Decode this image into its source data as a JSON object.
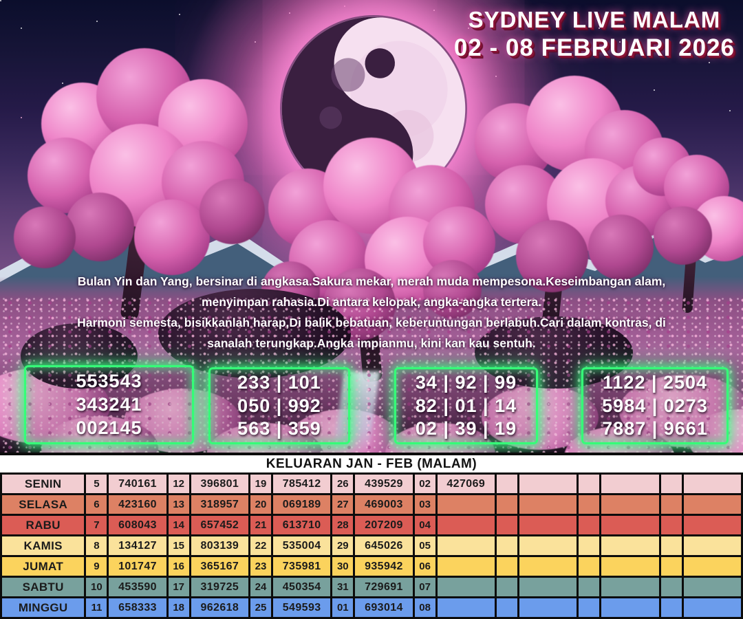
{
  "title": {
    "line1": "SYDNEY LIVE MALAM",
    "line2": "02 - 08 FEBRUARI 2026"
  },
  "poem": {
    "lines": [
      "Bulan Yin dan Yang, bersinar di angkasa.Sakura mekar, merah muda mempesona.Keseimbangan alam,",
      "menyimpan rahasia.Di antara kelopak, angka-angka tertera.",
      "Harmoni semesta, bisikkanlah harap,Di balik bebatuan, keberuntungan berlabuh.Cari dalam kontras, di",
      "sanalah terungkap.Angka impianmu, kini kan kau sentuh."
    ]
  },
  "boxes": [
    {
      "lines": [
        "553543",
        "343241",
        "002145"
      ]
    },
    {
      "lines": [
        "233 | 101",
        "050 | 992",
        "563 | 359"
      ]
    },
    {
      "lines": [
        "34 | 92 | 99",
        "82 | 01 | 14",
        "02 | 39 | 19"
      ]
    },
    {
      "lines": [
        "1122 | 2504",
        "5984 | 0273",
        "7887 | 9661"
      ]
    }
  ],
  "table": {
    "header": "KELUARAN JAN - FEB (MALAM)",
    "rows": [
      {
        "day": "SENIN",
        "color": "#f2cdd1",
        "cells": [
          "5",
          "740161",
          "12",
          "396801",
          "19",
          "785412",
          "26",
          "439529",
          "02",
          "427069",
          "",
          "",
          "",
          "",
          "",
          ""
        ]
      },
      {
        "day": "SELASA",
        "color": "#dd8164",
        "cells": [
          "6",
          "423160",
          "13",
          "318957",
          "20",
          "069189",
          "27",
          "469003",
          "03",
          "",
          "",
          "",
          "",
          "",
          "",
          ""
        ]
      },
      {
        "day": "RABU",
        "color": "#db5c55",
        "cells": [
          "7",
          "608043",
          "14",
          "657452",
          "21",
          "613710",
          "28",
          "207209",
          "04",
          "",
          "",
          "",
          "",
          "",
          "",
          ""
        ]
      },
      {
        "day": "KAMIS",
        "color": "#fae29b",
        "cells": [
          "8",
          "134127",
          "15",
          "803139",
          "22",
          "535004",
          "29",
          "645026",
          "05",
          "",
          "",
          "",
          "",
          "",
          "",
          ""
        ]
      },
      {
        "day": "JUMAT",
        "color": "#fbd35d",
        "cells": [
          "9",
          "101747",
          "16",
          "365167",
          "23",
          "735981",
          "30",
          "935942",
          "06",
          "",
          "",
          "",
          "",
          "",
          "",
          ""
        ]
      },
      {
        "day": "SABTU",
        "color": "#78a19d",
        "cells": [
          "10",
          "453590",
          "17",
          "319725",
          "24",
          "450354",
          "31",
          "729691",
          "07",
          "",
          "",
          "",
          "",
          "",
          "",
          ""
        ]
      },
      {
        "day": "MINGGU",
        "color": "#6b9cec",
        "cells": [
          "11",
          "658333",
          "18",
          "962618",
          "25",
          "549593",
          "01",
          "693014",
          "08",
          "",
          "",
          "",
          "",
          "",
          "",
          ""
        ]
      }
    ]
  },
  "colors": {
    "electric_border": "#35ff78",
    "title_text": "#ffffff",
    "title_shadow": "#8a1538",
    "table_border": "#0c0c0c",
    "moon_dark": "#3a1f40",
    "moon_light": "#f6e0f0"
  }
}
